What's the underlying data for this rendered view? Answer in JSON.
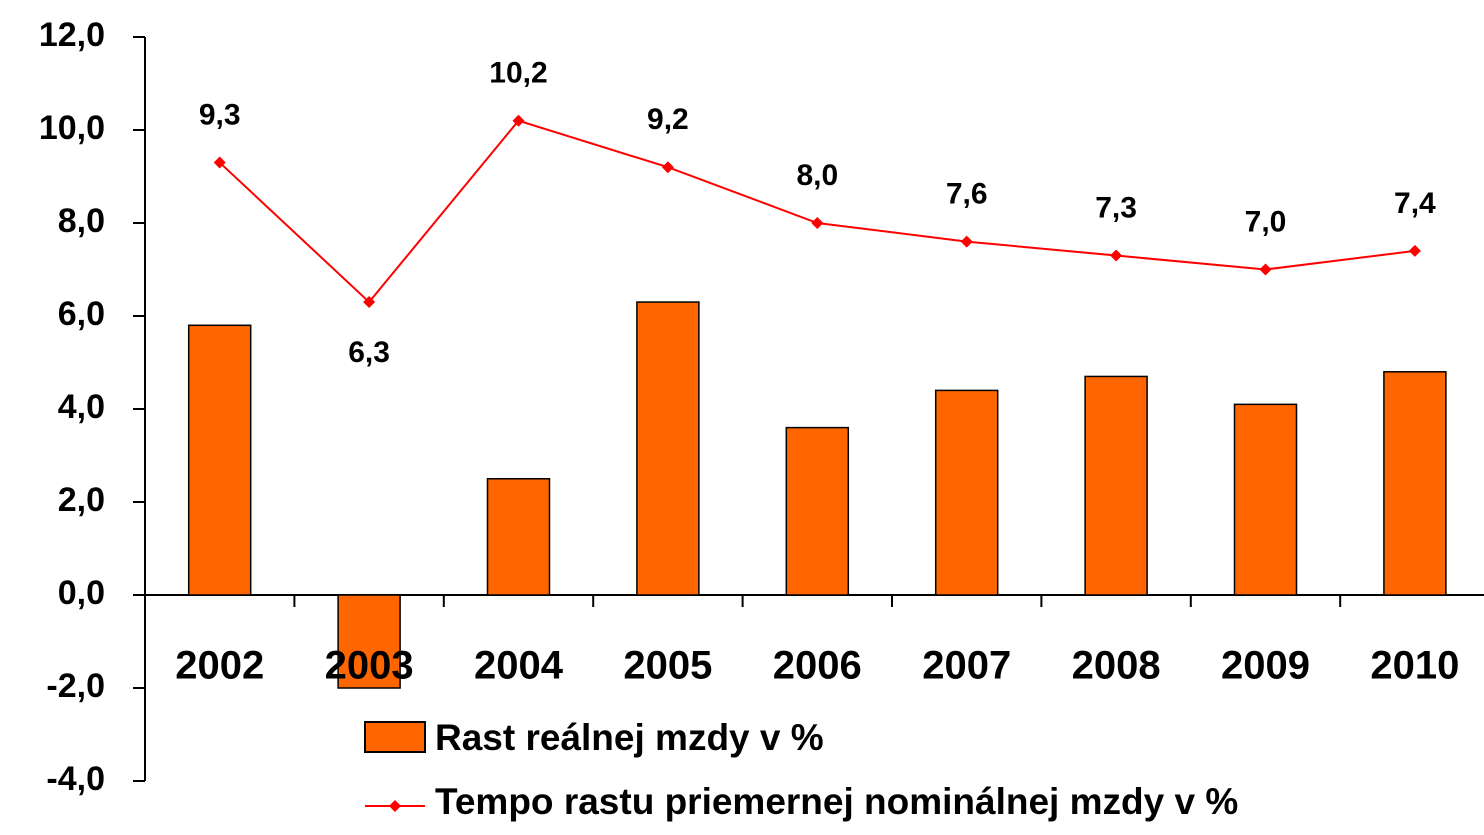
{
  "chart_data": {
    "type": "bar_line",
    "categories": [
      "2002",
      "2003",
      "2004",
      "2005",
      "2006",
      "2007",
      "2008",
      "2009",
      "2010"
    ],
    "series": [
      {
        "name": "Rast reálnej mzdy v %",
        "type": "bar",
        "color": "#ff6600",
        "values": [
          5.8,
          -2.0,
          2.5,
          6.3,
          3.6,
          4.4,
          4.7,
          4.1,
          4.8
        ]
      },
      {
        "name": "Tempo rastu priemernej nominálnej mzdy v %",
        "type": "line",
        "color": "#ff0000",
        "values": [
          9.3,
          6.3,
          10.2,
          9.2,
          8.0,
          7.6,
          7.3,
          7.0,
          7.4
        ],
        "value_labels": [
          "9,3",
          "6,3",
          "10,2",
          "9,2",
          "8,0",
          "7,6",
          "7,3",
          "7,0",
          "7,4"
        ]
      }
    ],
    "ylim": [
      -4,
      12
    ],
    "yticks": [
      {
        "value": -4,
        "label": "-4,0"
      },
      {
        "value": -2,
        "label": "-2,0"
      },
      {
        "value": 0,
        "label": "0,0"
      },
      {
        "value": 2,
        "label": "2,0"
      },
      {
        "value": 4,
        "label": "4,0"
      },
      {
        "value": 6,
        "label": "6,0"
      },
      {
        "value": 8,
        "label": "8,0"
      },
      {
        "value": 10,
        "label": "10,0"
      },
      {
        "value": 12,
        "label": "12,0"
      }
    ],
    "grid": false
  }
}
